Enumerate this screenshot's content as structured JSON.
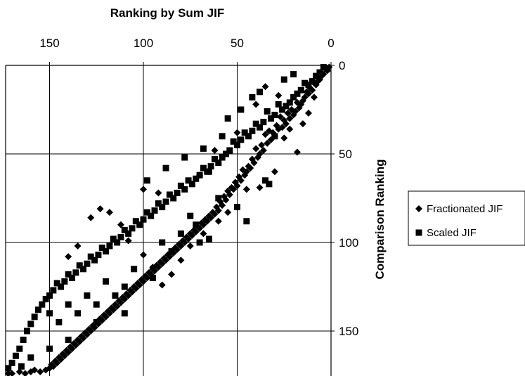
{
  "chart_data": {
    "type": "scatter",
    "xlabel": "Ranking by Sum JIF",
    "ylabel": "Comparison Ranking",
    "xlim": [
      175,
      0
    ],
    "ylim": [
      0,
      175
    ],
    "x_reversed": true,
    "y_reversed": true,
    "x_axis_position": "top",
    "y_axis_position": "right",
    "x_ticks": [
      150,
      100,
      50,
      0
    ],
    "y_ticks": [
      0,
      50,
      100,
      150
    ],
    "x_tick_labels": [
      "150",
      "100",
      "50",
      "0"
    ],
    "y_tick_labels": [
      "0",
      "50",
      "100",
      "150"
    ],
    "grid": true,
    "legend_position": "right",
    "series": [
      {
        "name": "Fractionated JIF",
        "marker": "diamond",
        "color": "#000000",
        "points": [
          [
            1,
            1
          ],
          [
            2,
            3
          ],
          [
            3,
            2
          ],
          [
            4,
            5
          ],
          [
            5,
            6
          ],
          [
            6,
            8
          ],
          [
            7,
            9
          ],
          [
            8,
            11
          ],
          [
            9,
            10
          ],
          [
            10,
            14
          ],
          [
            11,
            13
          ],
          [
            12,
            16
          ],
          [
            13,
            15
          ],
          [
            14,
            18
          ],
          [
            15,
            20
          ],
          [
            16,
            22
          ],
          [
            17,
            24
          ],
          [
            18,
            21
          ],
          [
            19,
            26
          ],
          [
            20,
            28
          ],
          [
            21,
            25
          ],
          [
            22,
            30
          ],
          [
            23,
            27
          ],
          [
            24,
            33
          ],
          [
            25,
            31
          ],
          [
            26,
            35
          ],
          [
            27,
            29
          ],
          [
            28,
            36
          ],
          [
            29,
            34
          ],
          [
            30,
            40
          ],
          [
            31,
            38
          ],
          [
            32,
            42
          ],
          [
            33,
            37
          ],
          [
            34,
            44
          ],
          [
            35,
            39
          ],
          [
            36,
            48
          ],
          [
            37,
            45
          ],
          [
            38,
            50
          ],
          [
            39,
            52
          ],
          [
            40,
            47
          ],
          [
            41,
            55
          ],
          [
            42,
            53
          ],
          [
            43,
            58
          ],
          [
            44,
            57
          ],
          [
            45,
            60
          ],
          [
            46,
            62
          ],
          [
            47,
            59
          ],
          [
            48,
            65
          ],
          [
            49,
            63
          ],
          [
            50,
            68
          ],
          [
            51,
            66
          ],
          [
            52,
            70
          ],
          [
            53,
            69
          ],
          [
            54,
            73
          ],
          [
            55,
            71
          ],
          [
            56,
            76
          ],
          [
            57,
            74
          ],
          [
            58,
            79
          ],
          [
            59,
            77
          ],
          [
            60,
            82
          ],
          [
            61,
            80
          ],
          [
            62,
            84
          ],
          [
            63,
            83
          ],
          [
            64,
            86
          ],
          [
            65,
            85
          ],
          [
            66,
            88
          ],
          [
            67,
            87
          ],
          [
            68,
            90
          ],
          [
            69,
            89
          ],
          [
            70,
            92
          ],
          [
            71,
            91
          ],
          [
            72,
            94
          ],
          [
            73,
            93
          ],
          [
            74,
            96
          ],
          [
            75,
            95
          ],
          [
            76,
            98
          ],
          [
            77,
            97
          ],
          [
            78,
            100
          ],
          [
            79,
            99
          ],
          [
            80,
            102
          ],
          [
            81,
            101
          ],
          [
            82,
            104
          ],
          [
            83,
            103
          ],
          [
            84,
            106
          ],
          [
            85,
            105
          ],
          [
            86,
            108
          ],
          [
            87,
            107
          ],
          [
            88,
            110
          ],
          [
            89,
            109
          ],
          [
            90,
            112
          ],
          [
            91,
            111
          ],
          [
            92,
            114
          ],
          [
            93,
            113
          ],
          [
            94,
            116
          ],
          [
            95,
            115
          ],
          [
            96,
            118
          ],
          [
            97,
            117
          ],
          [
            98,
            120
          ],
          [
            99,
            119
          ],
          [
            100,
            122
          ],
          [
            101,
            121
          ],
          [
            102,
            124
          ],
          [
            103,
            123
          ],
          [
            104,
            126
          ],
          [
            105,
            125
          ],
          [
            106,
            128
          ],
          [
            107,
            127
          ],
          [
            108,
            130
          ],
          [
            109,
            129
          ],
          [
            110,
            132
          ],
          [
            111,
            131
          ],
          [
            112,
            134
          ],
          [
            113,
            133
          ],
          [
            114,
            136
          ],
          [
            115,
            135
          ],
          [
            116,
            138
          ],
          [
            117,
            137
          ],
          [
            118,
            140
          ],
          [
            119,
            139
          ],
          [
            120,
            142
          ],
          [
            121,
            141
          ],
          [
            122,
            144
          ],
          [
            123,
            143
          ],
          [
            124,
            146
          ],
          [
            125,
            145
          ],
          [
            126,
            148
          ],
          [
            127,
            147
          ],
          [
            128,
            150
          ],
          [
            129,
            149
          ],
          [
            130,
            152
          ],
          [
            131,
            151
          ],
          [
            132,
            154
          ],
          [
            133,
            153
          ],
          [
            134,
            156
          ],
          [
            135,
            155
          ],
          [
            136,
            158
          ],
          [
            137,
            157
          ],
          [
            138,
            160
          ],
          [
            139,
            159
          ],
          [
            140,
            162
          ],
          [
            141,
            161
          ],
          [
            142,
            164
          ],
          [
            143,
            163
          ],
          [
            144,
            166
          ],
          [
            145,
            165
          ],
          [
            146,
            168
          ],
          [
            147,
            167
          ],
          [
            148,
            170
          ],
          [
            149,
            169
          ],
          [
            150,
            171
          ],
          [
            152,
            172
          ],
          [
            155,
            173
          ],
          [
            158,
            172
          ],
          [
            160,
            173
          ],
          [
            163,
            174
          ],
          [
            166,
            173
          ],
          [
            170,
            174
          ],
          [
            172,
            174
          ],
          [
            174,
            175
          ],
          [
            18,
            49
          ],
          [
            25,
            41
          ],
          [
            30,
            60
          ],
          [
            38,
            69
          ],
          [
            45,
            70
          ],
          [
            55,
            83
          ],
          [
            60,
            88
          ],
          [
            68,
            95
          ],
          [
            75,
            102
          ],
          [
            80,
            110
          ],
          [
            85,
            118
          ],
          [
            90,
            124
          ],
          [
            95,
            114
          ],
          [
            100,
            107
          ],
          [
            108,
            99
          ],
          [
            112,
            90
          ],
          [
            118,
            83
          ],
          [
            123,
            81
          ],
          [
            128,
            86
          ],
          [
            135,
            102
          ],
          [
            140,
            108
          ],
          [
            100,
            70
          ],
          [
            92,
            72
          ],
          [
            70,
            62
          ],
          [
            62,
            48
          ],
          [
            50,
            38
          ],
          [
            40,
            22
          ],
          [
            35,
            12
          ],
          [
            28,
            17
          ],
          [
            22,
            36
          ],
          [
            15,
            33
          ],
          [
            12,
            27
          ],
          [
            9,
            18
          ]
        ]
      },
      {
        "name": "Scaled JIF",
        "marker": "square",
        "color": "#000000",
        "points": [
          [
            2,
            2
          ],
          [
            4,
            1
          ],
          [
            6,
            4
          ],
          [
            8,
            6
          ],
          [
            10,
            9
          ],
          [
            12,
            11
          ],
          [
            14,
            10
          ],
          [
            16,
            14
          ],
          [
            18,
            16
          ],
          [
            20,
            18
          ],
          [
            22,
            21
          ],
          [
            24,
            23
          ],
          [
            26,
            25
          ],
          [
            28,
            22
          ],
          [
            30,
            28
          ],
          [
            32,
            30
          ],
          [
            34,
            26
          ],
          [
            36,
            32
          ],
          [
            38,
            35
          ],
          [
            40,
            33
          ],
          [
            42,
            37
          ],
          [
            44,
            40
          ],
          [
            46,
            38
          ],
          [
            48,
            42
          ],
          [
            50,
            45
          ],
          [
            52,
            43
          ],
          [
            54,
            48
          ],
          [
            56,
            50
          ],
          [
            58,
            52
          ],
          [
            60,
            55
          ],
          [
            62,
            53
          ],
          [
            64,
            57
          ],
          [
            66,
            60
          ],
          [
            68,
            58
          ],
          [
            70,
            62
          ],
          [
            72,
            64
          ],
          [
            74,
            67
          ],
          [
            76,
            65
          ],
          [
            78,
            70
          ],
          [
            80,
            68
          ],
          [
            82,
            72
          ],
          [
            84,
            75
          ],
          [
            86,
            73
          ],
          [
            88,
            77
          ],
          [
            90,
            80
          ],
          [
            92,
            78
          ],
          [
            94,
            82
          ],
          [
            96,
            85
          ],
          [
            98,
            83
          ],
          [
            100,
            87
          ],
          [
            102,
            90
          ],
          [
            104,
            88
          ],
          [
            106,
            92
          ],
          [
            108,
            95
          ],
          [
            110,
            93
          ],
          [
            112,
            97
          ],
          [
            114,
            100
          ],
          [
            116,
            98
          ],
          [
            118,
            102
          ],
          [
            120,
            105
          ],
          [
            122,
            103
          ],
          [
            124,
            107
          ],
          [
            126,
            110
          ],
          [
            128,
            108
          ],
          [
            130,
            112
          ],
          [
            132,
            115
          ],
          [
            134,
            113
          ],
          [
            136,
            117
          ],
          [
            138,
            120
          ],
          [
            140,
            118
          ],
          [
            142,
            122
          ],
          [
            144,
            125
          ],
          [
            146,
            123
          ],
          [
            148,
            127
          ],
          [
            150,
            130
          ],
          [
            152,
            132
          ],
          [
            154,
            135
          ],
          [
            156,
            138
          ],
          [
            158,
            142
          ],
          [
            160,
            146
          ],
          [
            162,
            150
          ],
          [
            164,
            155
          ],
          [
            166,
            160
          ],
          [
            168,
            164
          ],
          [
            170,
            168
          ],
          [
            172,
            171
          ],
          [
            174,
            173
          ],
          [
            33,
            67
          ],
          [
            35,
            65
          ],
          [
            50,
            80
          ],
          [
            45,
            88
          ],
          [
            60,
            75
          ],
          [
            65,
            60
          ],
          [
            75,
            85
          ],
          [
            80,
            95
          ],
          [
            85,
            105
          ],
          [
            95,
            120
          ],
          [
            105,
            115
          ],
          [
            110,
            125
          ],
          [
            115,
            130
          ],
          [
            120,
            122
          ],
          [
            125,
            135
          ],
          [
            130,
            130
          ],
          [
            135,
            140
          ],
          [
            140,
            135
          ],
          [
            145,
            145
          ],
          [
            150,
            140
          ],
          [
            55,
            30
          ],
          [
            48,
            25
          ],
          [
            42,
            18
          ],
          [
            38,
            15
          ],
          [
            25,
            8
          ],
          [
            20,
            5
          ],
          [
            30,
            40
          ],
          [
            58,
            40
          ],
          [
            68,
            47
          ],
          [
            78,
            52
          ],
          [
            88,
            58
          ],
          [
            98,
            65
          ],
          [
            70,
            100
          ],
          [
            65,
            98
          ],
          [
            72,
            90
          ],
          [
            90,
            100
          ],
          [
            110,
            140
          ],
          [
            125,
            145
          ],
          [
            140,
            155
          ],
          [
            150,
            160
          ],
          [
            160,
            165
          ],
          [
            165,
            170
          ]
        ]
      }
    ]
  }
}
